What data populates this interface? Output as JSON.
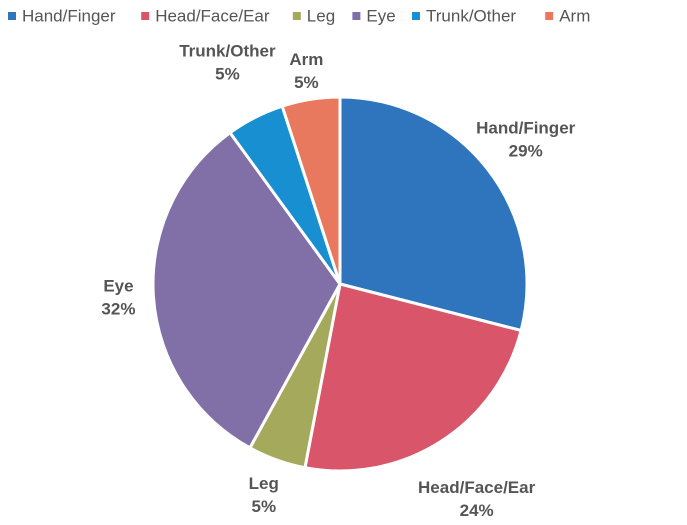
{
  "chart_data": {
    "type": "pie",
    "categories": [
      "Hand/Finger",
      "Head/Face/Ear",
      "Leg",
      "Eye",
      "Trunk/Other",
      "Arm"
    ],
    "values": [
      29,
      24,
      5,
      32,
      5,
      5
    ],
    "value_labels": [
      "29%",
      "24%",
      "5%",
      "32%",
      "5%",
      "5%"
    ],
    "colors": [
      "#2e75bd",
      "#d9566a",
      "#a4a95c",
      "#8170a8",
      "#178fd0",
      "#e8795e"
    ],
    "legend": "top"
  }
}
